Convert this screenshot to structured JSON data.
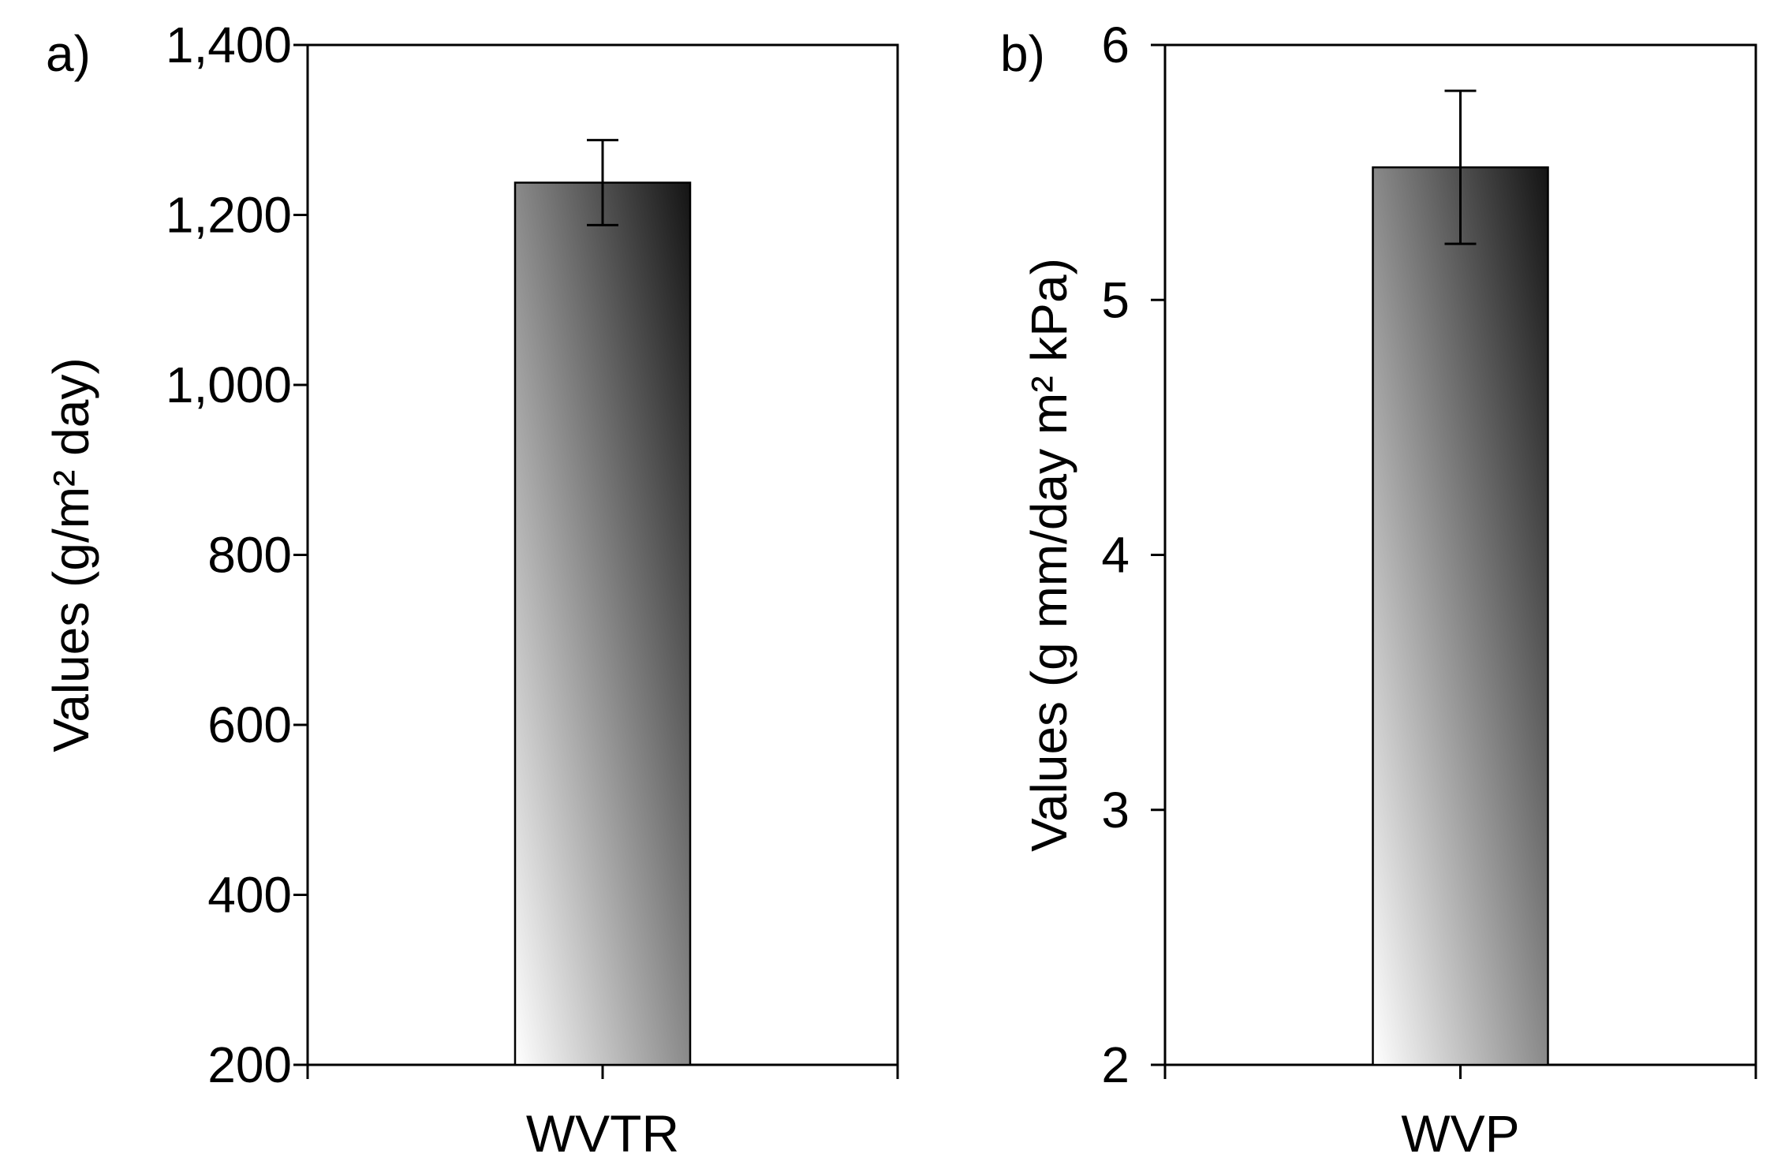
{
  "chart_data": [
    {
      "type": "bar",
      "panel_label": "a)",
      "categories": [
        "WVTR"
      ],
      "values": [
        1238
      ],
      "error": [
        50
      ],
      "ylabel": "Values (g/m² day)",
      "ylim": [
        200,
        1400
      ],
      "yticks": [
        200,
        400,
        600,
        800,
        1000,
        1200,
        1400
      ],
      "ytick_labels": [
        "200",
        "400",
        "600",
        "800",
        "1,000",
        "1,200",
        "1,400"
      ],
      "grid": false,
      "colors": {
        "bar_top": "#141414",
        "bar_bottom": "#ffffff"
      }
    },
    {
      "type": "bar",
      "panel_label": "b)",
      "categories": [
        "WVP"
      ],
      "values": [
        5.52
      ],
      "error": [
        0.3
      ],
      "ylabel": "Values (g mm/day m² kPa)",
      "ylim": [
        2,
        6
      ],
      "yticks": [
        2,
        3,
        4,
        5,
        6
      ],
      "ytick_labels": [
        "2",
        "3",
        "4",
        "5",
        "6"
      ],
      "grid": false,
      "colors": {
        "bar_top": "#141414",
        "bar_bottom": "#ffffff"
      }
    }
  ]
}
